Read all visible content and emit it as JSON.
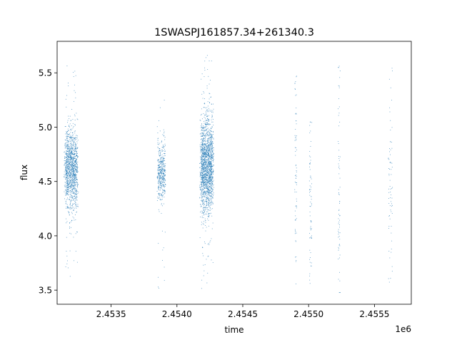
{
  "chart_data": {
    "type": "scatter",
    "title": "1SWASPJ161857.34+261340.3",
    "xlabel": "time",
    "ylabel": "flux",
    "x_offset_label": "1e6",
    "xlim": [
      2453090,
      2455780
    ],
    "ylim": [
      3.37,
      5.79
    ],
    "x_ticks": [
      {
        "value": 2453500,
        "label": "2.4535"
      },
      {
        "value": 2454000,
        "label": "2.4540"
      },
      {
        "value": 2454500,
        "label": "2.4545"
      },
      {
        "value": 2455000,
        "label": "2.4550"
      },
      {
        "value": 2455500,
        "label": "2.4555"
      }
    ],
    "y_ticks": [
      {
        "value": 3.5,
        "label": "3.5"
      },
      {
        "value": 4.0,
        "label": "4.0"
      },
      {
        "value": 4.5,
        "label": "4.5"
      },
      {
        "value": 5.0,
        "label": "5.0"
      },
      {
        "value": 5.5,
        "label": "5.5"
      }
    ],
    "grid": false,
    "legend": "none",
    "marker_color": "#1f77b4",
    "observing_seasons": [
      {
        "x_start": 2453130,
        "x_end": 2453260,
        "flux_center": 4.62,
        "flux_min": 3.49,
        "flux_max": 5.62,
        "density": "high"
      },
      {
        "x_start": 2453840,
        "x_end": 2453920,
        "flux_center": 4.6,
        "flux_min": 3.5,
        "flux_max": 5.3,
        "density": "medium"
      },
      {
        "x_start": 2454160,
        "x_end": 2454290,
        "flux_center": 4.65,
        "flux_min": 3.48,
        "flux_max": 5.67,
        "density": "very high"
      },
      {
        "x_start": 2454890,
        "x_end": 2454910,
        "flux_center": 4.4,
        "flux_min": 3.55,
        "flux_max": 5.5,
        "density": "sparse"
      },
      {
        "x_start": 2455000,
        "x_end": 2455025,
        "flux_center": 4.3,
        "flux_min": 3.5,
        "flux_max": 5.05,
        "density": "sparse"
      },
      {
        "x_start": 2455220,
        "x_end": 2455240,
        "flux_center": 4.3,
        "flux_min": 3.48,
        "flux_max": 5.57,
        "density": "sparse"
      },
      {
        "x_start": 2455600,
        "x_end": 2455640,
        "flux_center": 4.3,
        "flux_min": 3.5,
        "flux_max": 5.56,
        "density": "sparse"
      }
    ]
  }
}
